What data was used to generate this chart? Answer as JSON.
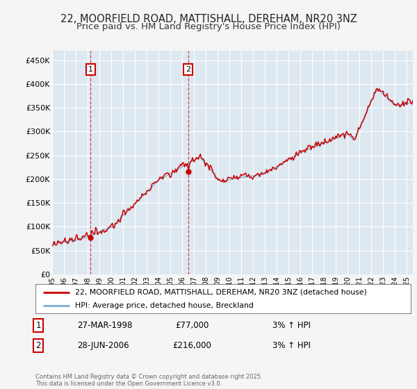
{
  "title": "22, MOORFIELD ROAD, MATTISHALL, DEREHAM, NR20 3NZ",
  "subtitle": "Price paid vs. HM Land Registry's House Price Index (HPI)",
  "ylim": [
    0,
    470000
  ],
  "yticks": [
    0,
    50000,
    100000,
    150000,
    200000,
    250000,
    300000,
    350000,
    400000,
    450000
  ],
  "ytick_labels": [
    "£0",
    "£50K",
    "£100K",
    "£150K",
    "£200K",
    "£250K",
    "£300K",
    "£350K",
    "£400K",
    "£450K"
  ],
  "legend_line1": "22, MOORFIELD ROAD, MATTISHALL, DEREHAM, NR20 3NZ (detached house)",
  "legend_line2": "HPI: Average price, detached house, Breckland",
  "line1_color": "#cc0000",
  "line2_color": "#7ab0d4",
  "sale1_date": "27-MAR-1998",
  "sale1_price": "£77,000",
  "sale1_hpi": "3% ↑ HPI",
  "sale2_date": "28-JUN-2006",
  "sale2_price": "£216,000",
  "sale2_hpi": "3% ↑ HPI",
  "footer": "Contains HM Land Registry data © Crown copyright and database right 2025.\nThis data is licensed under the Open Government Licence v3.0.",
  "plot_bg_color": "#dde8f0",
  "grid_color": "#ffffff",
  "title_fontsize": 10.5,
  "subtitle_fontsize": 9.5
}
